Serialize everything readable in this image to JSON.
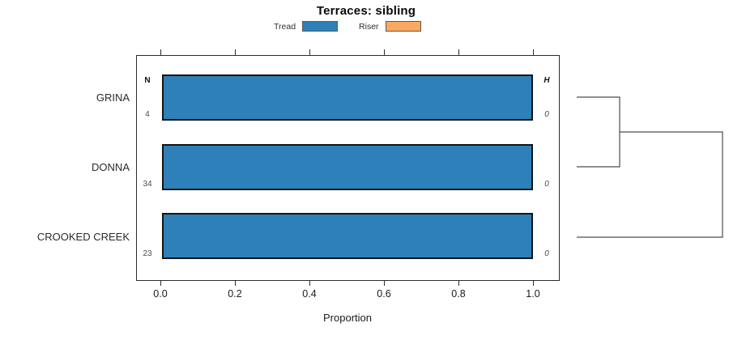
{
  "title": "Terraces: sibling",
  "legend": {
    "items": [
      {
        "label": "Tread",
        "color": "#2e80b9"
      },
      {
        "label": "Riser",
        "color": "#fca95f"
      }
    ]
  },
  "axis": {
    "xlabel": "Proportion",
    "x_tick_labels": [
      "0.0",
      "0.2",
      "0.4",
      "0.6",
      "0.8",
      "1.0"
    ]
  },
  "columns": {
    "n_header": "N",
    "h_header": "H"
  },
  "rows": [
    {
      "label": "GRINA",
      "n": "4",
      "h": "0"
    },
    {
      "label": "DONNA",
      "n": "34",
      "h": "0"
    },
    {
      "label": "CROOKED CREEK",
      "n": "23",
      "h": "0"
    }
  ],
  "chart_data": {
    "type": "bar",
    "orientation": "horizontal",
    "title": "Terraces: sibling",
    "xlabel": "Proportion",
    "xlim": [
      0,
      1
    ],
    "x_ticks": [
      0.0,
      0.2,
      0.4,
      0.6,
      0.8,
      1.0
    ],
    "grid": false,
    "legend_position": "top",
    "categories": [
      "GRINA",
      "DONNA",
      "CROOKED CREEK"
    ],
    "series": [
      {
        "name": "Tread",
        "color": "#2e80b9",
        "values": [
          1.0,
          1.0,
          1.0
        ]
      },
      {
        "name": "Riser",
        "color": "#fca95f",
        "values": [
          0.0,
          0.0,
          0.0
        ]
      }
    ],
    "n_values": [
      4,
      34,
      23
    ],
    "h_values": [
      0,
      0,
      0
    ],
    "dendrogram": {
      "position": "right",
      "structure": "((GRINA,DONNA),CROOKED CREEK)",
      "heights": [
        0,
        0
      ]
    }
  }
}
